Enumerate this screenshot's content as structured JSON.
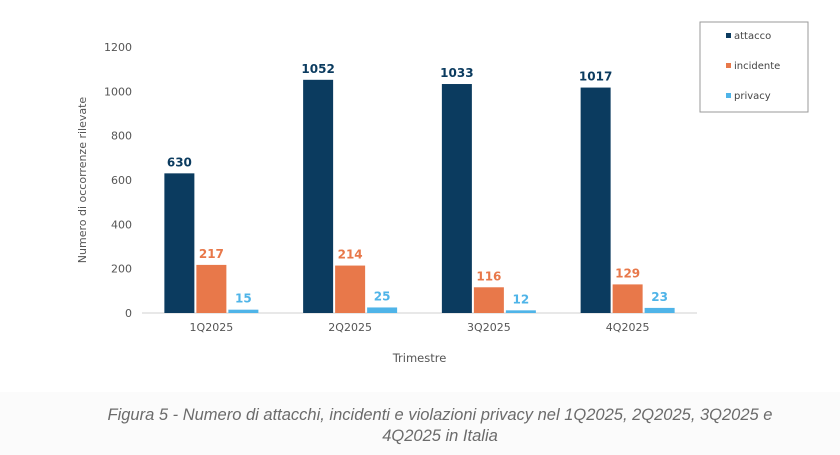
{
  "chart_data": {
    "type": "bar",
    "categories": [
      "1Q2025",
      "2Q2025",
      "3Q2025",
      "4Q2025"
    ],
    "series": [
      {
        "name": "attacco",
        "values": [
          630,
          1052,
          1033,
          1017
        ],
        "color": "#0b3b5f",
        "label_color": "#0b3b5f"
      },
      {
        "name": "incidente",
        "values": [
          217,
          214,
          116,
          129
        ],
        "color": "#e8784a",
        "label_color": "#e8784a"
      },
      {
        "name": "privacy",
        "values": [
          15,
          25,
          12,
          23
        ],
        "color": "#4fb4e8",
        "label_color": "#4fb4e8"
      }
    ],
    "title": "",
    "xlabel": "Trimestre",
    "ylabel": "Numero di occorrenze rilevate",
    "ylim": [
      0,
      1200
    ],
    "yticks": [
      0,
      200,
      400,
      600,
      800,
      1000,
      1200
    ],
    "grid": false,
    "legend_position": "top-right"
  },
  "caption": {
    "line1": "Figura 5 - Numero di attacchi, incidenti e violazioni privacy nel 1Q2025, 2Q2025, 3Q2025 e",
    "line2": "4Q2025 in Italia"
  }
}
